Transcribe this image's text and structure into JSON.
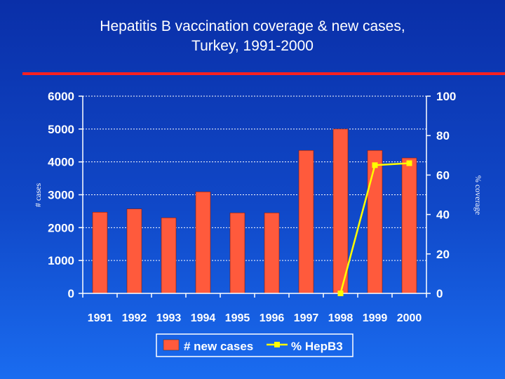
{
  "chart_data": {
    "type": "bar+line",
    "title_lines": [
      "Hepatitis B vaccination coverage & new cases,",
      "Turkey, 1991-2000"
    ],
    "categories": [
      "1991",
      "1992",
      "1993",
      "1994",
      "1995",
      "1996",
      "1997",
      "1998",
      "1999",
      "2000"
    ],
    "series": [
      {
        "name": "# new cases",
        "type": "bar",
        "axis": "left",
        "values": [
          2470,
          2570,
          2300,
          3090,
          2450,
          2450,
          4350,
          5000,
          4350,
          4120
        ]
      },
      {
        "name": "% HepB3",
        "type": "line",
        "axis": "right",
        "values": [
          null,
          null,
          null,
          null,
          null,
          null,
          null,
          0,
          65,
          66
        ]
      }
    ],
    "ylabel": "# cases",
    "y2label": "% coverage",
    "ylim": [
      0,
      6000
    ],
    "y2lim": [
      0,
      100
    ],
    "yticks": [
      0,
      1000,
      2000,
      3000,
      4000,
      5000,
      6000
    ],
    "y2ticks": [
      0,
      20,
      40,
      60,
      80,
      100
    ],
    "grid": true,
    "legend": "bottom",
    "colors": {
      "bar": "#ff5a3c",
      "line": "#ffff00",
      "grid": "#ffffff",
      "accent_rule": "#ff2020"
    }
  }
}
